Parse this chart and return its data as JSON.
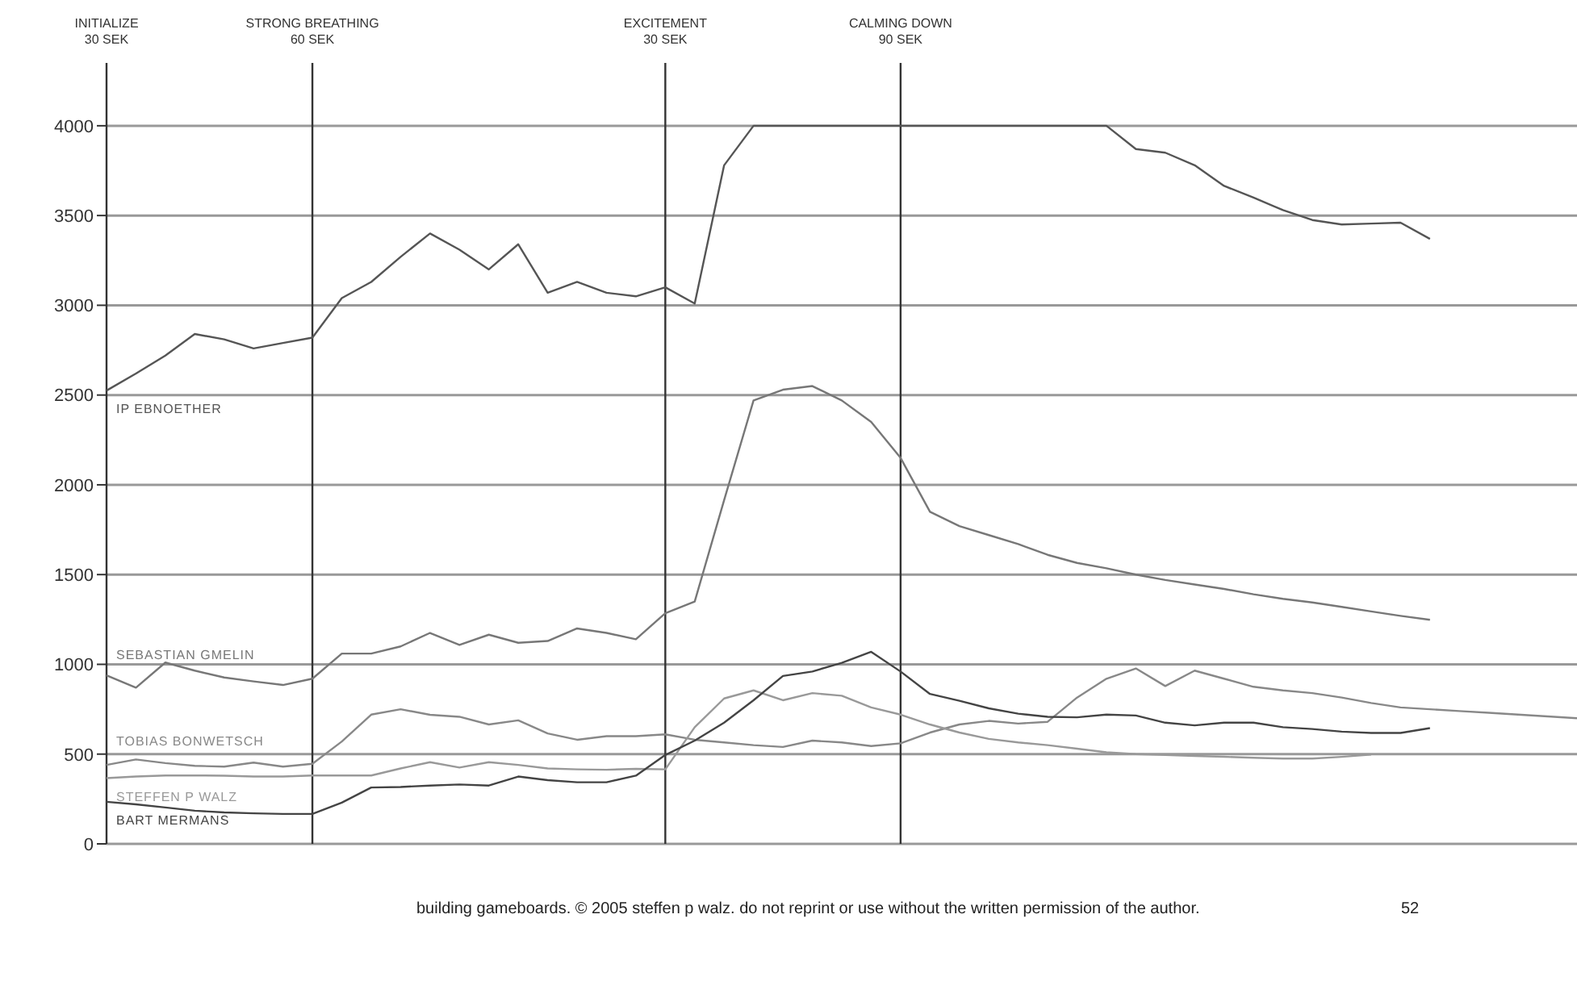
{
  "chart_data": {
    "type": "line",
    "ylim": [
      0,
      4350
    ],
    "yticks": [
      0,
      500,
      1000,
      1500,
      2000,
      2500,
      3000,
      3500,
      4000
    ],
    "grid": true,
    "marker": "none",
    "line_style": "solid",
    "categories": [
      "INITIALIZE\n30 SEK",
      null,
      null,
      null,
      null,
      null,
      null,
      "STRONG BREATHING\n60 SEK",
      null,
      null,
      null,
      null,
      null,
      null,
      null,
      null,
      null,
      null,
      null,
      "EXCITEMENT\n30 SEK",
      null,
      null,
      null,
      null,
      null,
      null,
      null,
      "CALMING DOWN\n90 SEK",
      null,
      null,
      null,
      null,
      null,
      null,
      null,
      null,
      null,
      null,
      null,
      null,
      null,
      null,
      null,
      null,
      null,
      null,
      null,
      null,
      null,
      null,
      null
    ],
    "series": [
      {
        "name": "IP EBNOETHER",
        "color": "#555555",
        "values": [
          2525,
          2620,
          2720,
          2840,
          2810,
          2760,
          2790,
          2820,
          3040,
          3130,
          3270,
          3400,
          3310,
          3200,
          3340,
          3070,
          3130,
          3070,
          3050,
          3100,
          3010,
          3780,
          4000,
          4000,
          4000,
          4000,
          4000,
          4000,
          4000,
          4000,
          4000,
          4000,
          4000,
          4000,
          4000,
          3870,
          3850,
          3780,
          3665,
          3600,
          3530,
          3475,
          3450,
          3455,
          3460,
          3370,
          null,
          null,
          null,
          null,
          null
        ]
      },
      {
        "name": "SEBASTIAN GMELIN",
        "color": "#777777",
        "values": [
          939,
          870,
          1010,
          965,
          927,
          905,
          885,
          920,
          1060,
          1060,
          1100,
          1175,
          1108,
          1165,
          1120,
          1130,
          1200,
          1175,
          1140,
          1285,
          1350,
          1915,
          2470,
          2530,
          2550,
          2470,
          2350,
          2150,
          1850,
          1770,
          1720,
          1670,
          1610,
          1565,
          1535,
          1500,
          1470,
          1445,
          1420,
          1390,
          1365,
          1345,
          1320,
          1295,
          1270,
          1248,
          null,
          null,
          null,
          null,
          null
        ]
      },
      {
        "name": "TOBIAS BONWETSCH",
        "color": "#888888",
        "values": [
          440,
          470,
          450,
          435,
          430,
          453,
          430,
          446,
          570,
          720,
          750,
          719,
          708,
          665,
          688,
          615,
          580,
          600,
          600,
          610,
          580,
          565,
          550,
          540,
          575,
          565,
          545,
          560,
          620,
          665,
          685,
          670,
          680,
          815,
          920,
          977,
          879,
          965,
          920,
          875,
          855,
          840,
          815,
          785,
          760,
          750,
          740,
          730,
          720,
          710,
          700
        ]
      },
      {
        "name": "STEFFEN P WALZ",
        "color": "#999999",
        "values": [
          366,
          375,
          381,
          381,
          380,
          375,
          375,
          381,
          381,
          381,
          420,
          455,
          425,
          455,
          440,
          420,
          415,
          413,
          418,
          415,
          650,
          810,
          855,
          800,
          840,
          825,
          760,
          720,
          665,
          620,
          585,
          565,
          550,
          530,
          510,
          500,
          495,
          490,
          485,
          480,
          475,
          475,
          485,
          497,
          null,
          null,
          null,
          null,
          null,
          null,
          null
        ]
      },
      {
        "name": "BART MERMANS",
        "color": "#444444",
        "values": [
          234,
          220,
          203,
          185,
          175,
          170,
          167,
          167,
          230,
          314,
          317,
          325,
          331,
          325,
          375,
          355,
          343,
          343,
          380,
          495,
          575,
          675,
          800,
          935,
          960,
          1008,
          1070,
          960,
          835,
          797,
          755,
          725,
          708,
          705,
          720,
          715,
          675,
          660,
          675,
          675,
          650,
          640,
          625,
          618,
          618,
          645,
          null,
          null,
          null,
          null,
          null
        ]
      }
    ],
    "annotations": [
      "building gameboards. © 2005 steffen p walz. do not reprint or use without the written permission of the author.",
      "52"
    ]
  }
}
